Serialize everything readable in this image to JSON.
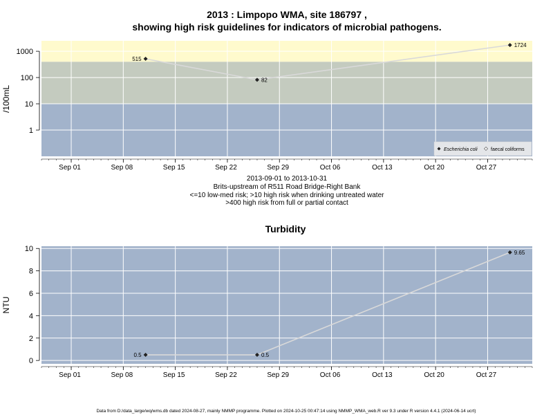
{
  "colors": {
    "high": "#fffacd",
    "medium": "#c4cbbf",
    "low": "#a2b3cb",
    "panel": "#a2b3cb",
    "grid": "#ffffff",
    "line": "#d9d9d9",
    "point": "#222222"
  },
  "chart_data": [
    {
      "type": "line",
      "title": "2013 : Limpopo WMA, site 186797 ,",
      "subtitle": "showing high risk guidelines for indicators of microbial pathogens.",
      "ylabel": "/100mL",
      "yscale": "log",
      "ylim": [
        0.1,
        2500
      ],
      "yticks": [
        1,
        10,
        100,
        1000
      ],
      "ytick_labels": [
        "1",
        "10",
        "100",
        "1000"
      ],
      "xlim": [
        "2013-08-28",
        "2013-11-02"
      ],
      "xticks": [
        "2013-09-01",
        "2013-09-08",
        "2013-09-15",
        "2013-09-22",
        "2013-09-29",
        "2013-10-06",
        "2013-10-13",
        "2013-10-20",
        "2013-10-27"
      ],
      "xtick_labels": [
        "Sep 01",
        "Sep 08",
        "Sep 15",
        "Sep 22",
        "Sep 29",
        "Oct 06",
        "Oct 13",
        "Oct 20",
        "Oct 27"
      ],
      "bands": [
        {
          "from": 0.1,
          "to": 10,
          "color": "#a2b3cb"
        },
        {
          "from": 10,
          "to": 400,
          "color": "#c4cbbf"
        },
        {
          "from": 400,
          "to": 2500,
          "color": "#fffacd"
        }
      ],
      "series": [
        {
          "name": "Escherichia coli",
          "x": [
            "2013-09-11",
            "2013-09-26",
            "2013-10-30"
          ],
          "y": [
            515,
            82,
            1724
          ],
          "labels": [
            "515",
            "82",
            "1724"
          ]
        }
      ],
      "legend": {
        "position": "bottom-right",
        "entries": [
          "Escherichia coli",
          "faecal coliforms"
        ]
      },
      "caption": [
        "2013-09-01 to 2013-10-31",
        "Brits-upstream of R511 Road Bridge-Right Bank",
        "<=10 low-med risk; >10 high risk when drinking untreated water",
        ">400 high risk from full or partial contact"
      ]
    },
    {
      "type": "line",
      "title": "Turbidity",
      "ylabel": "NTU",
      "ylim": [
        -0.3,
        10.2
      ],
      "yticks": [
        0,
        2,
        4,
        6,
        8,
        10
      ],
      "ytick_labels": [
        "0",
        "2",
        "4",
        "6",
        "8",
        "10"
      ],
      "xlim": [
        "2013-08-28",
        "2013-11-02"
      ],
      "xticks": [
        "2013-09-01",
        "2013-09-08",
        "2013-09-15",
        "2013-09-22",
        "2013-09-29",
        "2013-10-06",
        "2013-10-13",
        "2013-10-20",
        "2013-10-27"
      ],
      "xtick_labels": [
        "Sep 01",
        "Sep 08",
        "Sep 15",
        "Sep 22",
        "Sep 29",
        "Oct 06",
        "Oct 13",
        "Oct 20",
        "Oct 27"
      ],
      "series": [
        {
          "x": [
            "2013-09-11",
            "2013-09-26",
            "2013-10-30"
          ],
          "y": [
            0.5,
            0.5,
            9.65
          ],
          "labels": [
            "0.5",
            "0.5",
            "9.65"
          ]
        }
      ]
    }
  ],
  "footer": "Data from D:/data_large/wq/wms.db dated 2024-08-27, mainly NMMP programme. Plotted on 2024-10-25 00:47:14 using NMMP_WMA_web.R ver 9.3 under R version 4.4.1 (2024-06-14 ucrt)"
}
